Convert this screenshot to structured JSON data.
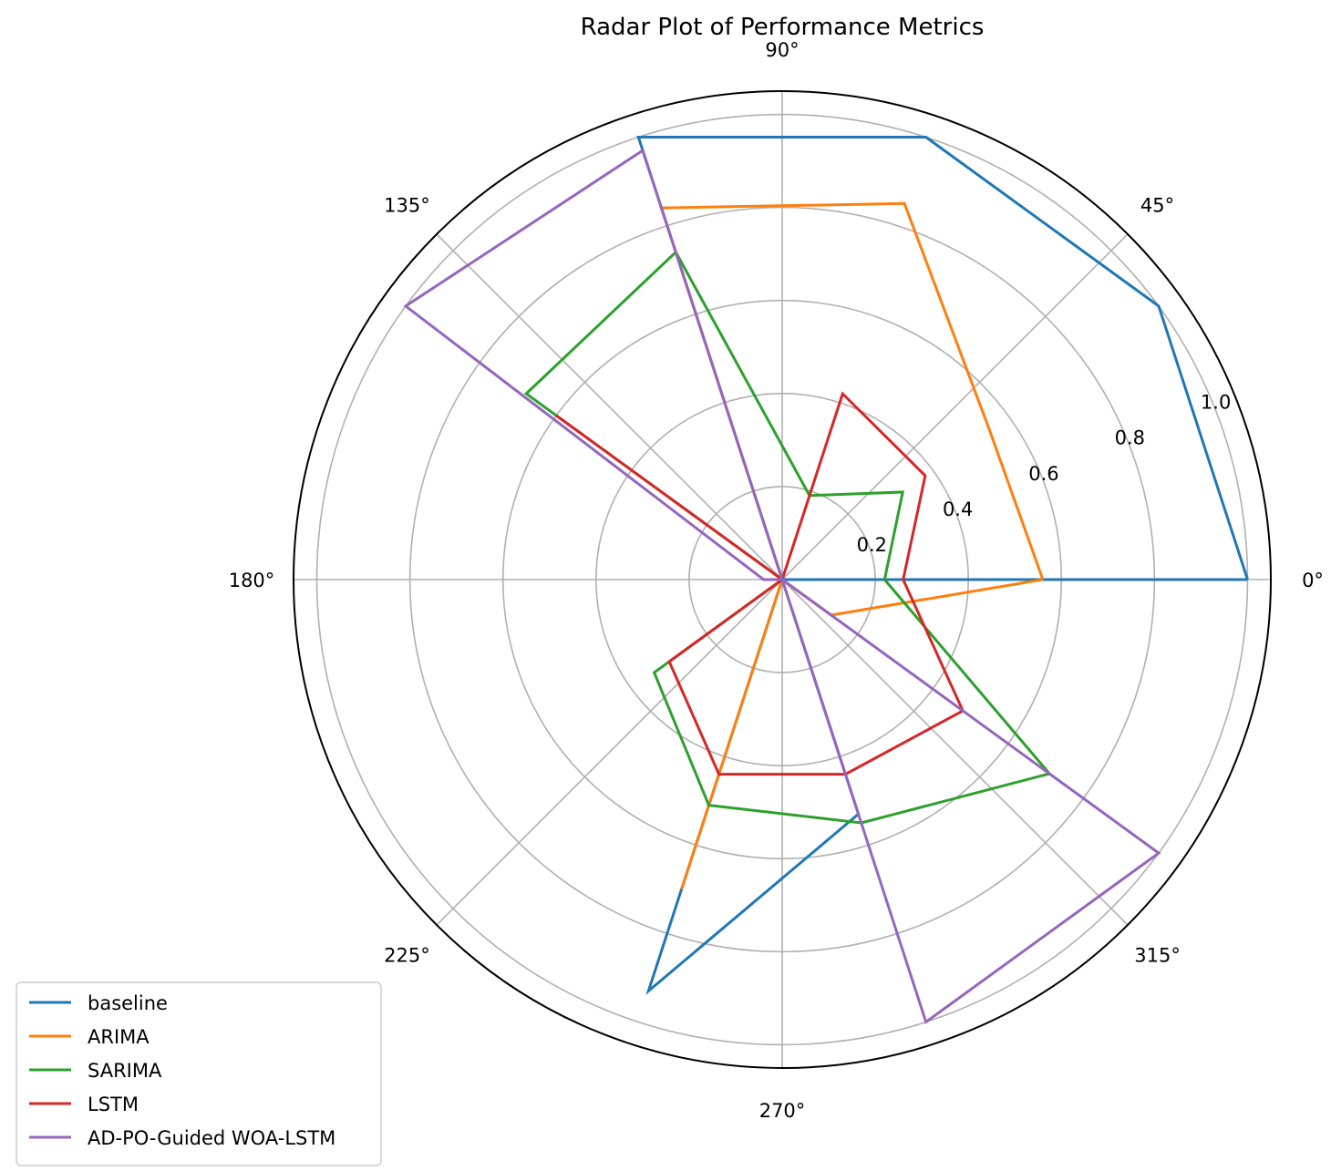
{
  "chart_data": {
    "type": "radar",
    "title": "Radar Plot of Performance Metrics",
    "angle_ticks": [
      "0°",
      "45°",
      "90°",
      "135°",
      "180°",
      "225°",
      "270°",
      "315°"
    ],
    "radial_ticks": [
      "0.2",
      "0.4",
      "0.6",
      "0.8",
      "1.0"
    ],
    "rlim": [
      0,
      1.05
    ],
    "grid": true,
    "legend_position": "lower-left",
    "angles_deg": [
      0,
      36,
      72,
      108,
      144,
      180,
      216,
      252,
      288,
      324
    ],
    "series": [
      {
        "name": "baseline",
        "color": "#1f77b4",
        "values": [
          1.0,
          1.0,
          1.0,
          1.0,
          0.0,
          0.0,
          0.0,
          0.93,
          0.53,
          0.0
        ]
      },
      {
        "name": "ARIMA",
        "color": "#ff7f0e",
        "values": [
          0.56,
          0.55,
          0.85,
          0.84,
          0.0,
          0.04,
          0.0,
          0.7,
          0.0,
          0.13
        ]
      },
      {
        "name": "SARIMA",
        "color": "#2ca02c",
        "values": [
          0.22,
          0.32,
          0.19,
          0.74,
          0.68,
          0.0,
          0.34,
          0.51,
          0.55,
          0.71
        ]
      },
      {
        "name": "LSTM",
        "color": "#d62728",
        "values": [
          0.26,
          0.38,
          0.42,
          0.0,
          0.6,
          0.0,
          0.3,
          0.44,
          0.44,
          0.48
        ]
      },
      {
        "name": "AD-PO-Guided WOA-LSTM",
        "color": "#9467bd",
        "values": [
          0.0,
          0.0,
          0.0,
          0.97,
          1.0,
          0.04,
          0.0,
          0.0,
          1.0,
          1.0
        ]
      }
    ]
  }
}
